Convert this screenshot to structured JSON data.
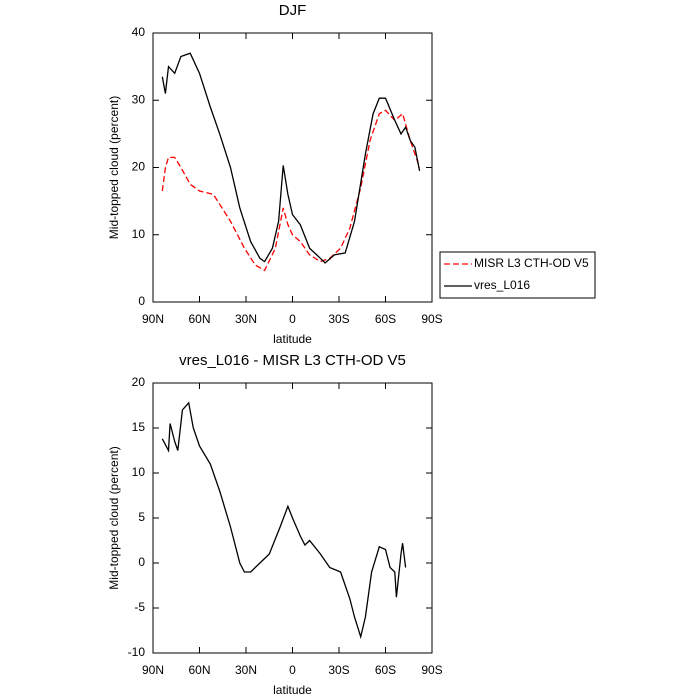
{
  "chart_data": [
    {
      "type": "line",
      "title": "DJF",
      "xlabel": "latitude",
      "ylabel": "Mid-topped cloud (percent)",
      "xlim": [
        90,
        -90
      ],
      "ylim": [
        0,
        40
      ],
      "xticks": [
        {
          "value": 90,
          "label": "90N"
        },
        {
          "value": 60,
          "label": "60N"
        },
        {
          "value": 30,
          "label": "30N"
        },
        0,
        {
          "value": -30,
          "label": "30S"
        },
        {
          "value": -60,
          "label": "60S"
        },
        {
          "value": -90,
          "label": "90S"
        }
      ],
      "yticks": [
        0,
        10,
        20,
        30,
        40
      ],
      "legend": "right",
      "series": [
        {
          "name": "MISR L3 CTH-OD V5",
          "color": "#ff0000",
          "line_style": "dashed",
          "x": [
            84,
            82,
            80,
            76,
            72,
            66,
            60,
            51,
            40,
            31,
            24,
            18,
            11,
            6,
            3,
            0,
            -5,
            -11,
            -18,
            -24,
            -31,
            -37,
            -44,
            -50,
            -56,
            -60,
            -66,
            -71,
            -76,
            -82
          ],
          "values": [
            16.5,
            20,
            21.5,
            21.5,
            20,
            17.5,
            16.5,
            16,
            12,
            8,
            5.5,
            4.7,
            8,
            14,
            11.5,
            10,
            9,
            7,
            6,
            6.5,
            8,
            11,
            17,
            24,
            28,
            28.5,
            27,
            28,
            24,
            20
          ]
        },
        {
          "name": "vres_L016",
          "color": "#000000",
          "line_style": "solid",
          "x": [
            84,
            82,
            80,
            76,
            72,
            66,
            60,
            53,
            47,
            40,
            34,
            27,
            21,
            18,
            13,
            9,
            6,
            3,
            0,
            -5,
            -11,
            -18,
            -21,
            -27,
            -34,
            -40,
            -47,
            -52,
            -56,
            -60,
            -66,
            -70,
            -73,
            -76,
            -79,
            -82
          ],
          "values": [
            33.5,
            31,
            35,
            34,
            36.5,
            37,
            34,
            29,
            25,
            20,
            14,
            9,
            6.5,
            6,
            8,
            12,
            20.3,
            16,
            13,
            11.5,
            8,
            6.5,
            5.8,
            7,
            7.3,
            12,
            22,
            28,
            30.3,
            30.3,
            27,
            25,
            26,
            24,
            23,
            19.5
          ]
        }
      ]
    },
    {
      "type": "line",
      "title": "vres_L016 - MISR L3 CTH-OD V5",
      "xlabel": "latitude",
      "ylabel": "Mid-topped cloud (percent)",
      "xlim": [
        90,
        -90
      ],
      "ylim": [
        -10,
        20
      ],
      "xticks": [
        {
          "value": 90,
          "label": "90N"
        },
        {
          "value": 60,
          "label": "60N"
        },
        {
          "value": 30,
          "label": "30N"
        },
        0,
        {
          "value": -30,
          "label": "30S"
        },
        {
          "value": -60,
          "label": "60S"
        },
        {
          "value": -90,
          "label": "90S"
        }
      ],
      "yticks": [
        -10,
        -5,
        0,
        5,
        10,
        15,
        20
      ],
      "series": [
        {
          "color": "#000000",
          "line_style": "solid",
          "x": [
            84,
            80,
            79,
            76,
            74,
            71,
            67,
            64,
            60,
            53,
            47,
            40,
            34,
            31,
            27,
            21,
            15,
            8,
            3,
            0,
            -5,
            -8,
            -11,
            -18,
            -24,
            -31,
            -37,
            -40,
            -44,
            -47,
            -51,
            -56,
            -60,
            -63,
            -66,
            -67,
            -70,
            -71,
            -73
          ],
          "values": [
            13.8,
            12.5,
            15.5,
            13.5,
            12.5,
            17,
            17.8,
            15,
            13,
            11,
            8,
            4,
            0,
            -1,
            -1,
            0,
            1,
            4,
            6.3,
            5,
            3,
            2,
            2.5,
            1,
            -0.5,
            -1,
            -4,
            -6,
            -8.2,
            -6,
            -1,
            1.8,
            1.5,
            -0.5,
            -1,
            -3.8,
            1,
            2.2,
            -0.5
          ]
        }
      ]
    }
  ]
}
